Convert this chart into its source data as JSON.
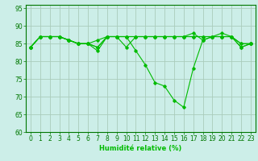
{
  "title": "",
  "xlabel": "Humidité relative (%)",
  "ylabel": "",
  "xlim": [
    -0.5,
    23.5
  ],
  "ylim": [
    60,
    96
  ],
  "yticks": [
    60,
    65,
    70,
    75,
    80,
    85,
    90,
    95
  ],
  "xticks": [
    0,
    1,
    2,
    3,
    4,
    5,
    6,
    7,
    8,
    9,
    10,
    11,
    12,
    13,
    14,
    15,
    16,
    17,
    18,
    19,
    20,
    21,
    22,
    23
  ],
  "bg_color": "#cceee8",
  "grid_color": "#aaccbb",
  "line_color": "#00bb00",
  "series": [
    [
      84,
      87,
      87,
      87,
      86,
      85,
      85,
      84,
      87,
      87,
      87,
      87,
      87,
      87,
      87,
      87,
      87,
      87,
      87,
      87,
      87,
      87,
      85,
      85
    ],
    [
      84,
      87,
      87,
      87,
      86,
      85,
      85,
      86,
      87,
      87,
      87,
      87,
      87,
      87,
      87,
      87,
      87,
      88,
      86,
      87,
      87,
      87,
      84,
      85
    ],
    [
      84,
      87,
      87,
      87,
      86,
      85,
      85,
      83,
      87,
      87,
      87,
      83,
      79,
      74,
      73,
      69,
      67,
      78,
      86,
      87,
      88,
      87,
      84,
      85
    ],
    [
      84,
      87,
      87,
      87,
      86,
      85,
      85,
      84,
      87,
      87,
      84,
      87,
      87,
      87,
      87,
      87,
      87,
      87,
      87,
      87,
      87,
      87,
      85,
      85
    ]
  ]
}
